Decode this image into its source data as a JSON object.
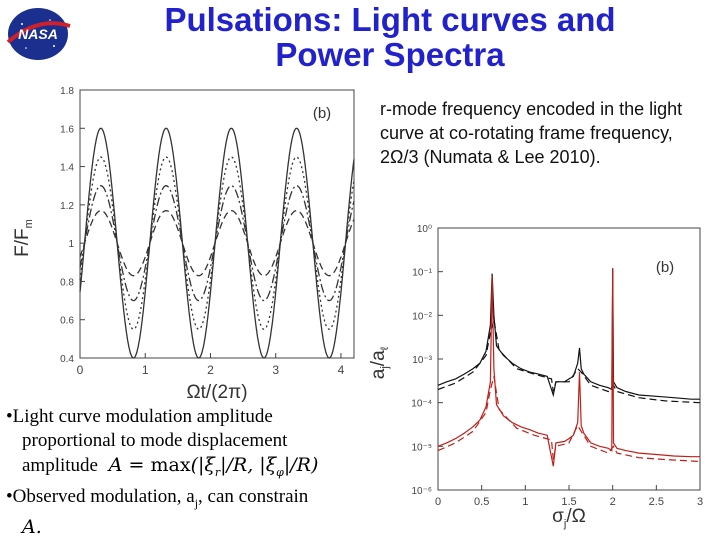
{
  "slide": {
    "title_line1": "Pulsations: Light curves and",
    "title_line2": "Power Spectra",
    "logo_text": "NASA",
    "caption": "r-mode frequency encoded in the light curve at co-rotating frame frequency, 2Ω/3 (Numata & Lee 2010).",
    "bullet1_line1": "•Light curve modulation amplitude",
    "bullet1_line2": "proportional to mode displacement",
    "bullet1_line3": "amplitude",
    "bullet2_line1": "•Observed modulation, a",
    "bullet2_sub": "j",
    "bullet2_rest": ", can constrain",
    "bullet2_line2": "A."
  },
  "chart_data": [
    {
      "type": "line",
      "panel_label": "(b)",
      "xlabel": "Ωt/(2π)",
      "ylabel": "F/F",
      "ylabel_sub": "m",
      "xlim": [
        0,
        4.2
      ],
      "ylim": [
        0.4,
        1.8
      ],
      "xticks": [
        0,
        1,
        2,
        3,
        4
      ],
      "yticks": [
        0.4,
        0.6,
        0.8,
        1,
        1.2,
        1.4,
        1.6,
        1.8
      ],
      "ytick_labels": [
        "0.4",
        "0.6",
        "0.8",
        "1",
        "1.2",
        "1.4",
        "1.6",
        "1.8"
      ],
      "cycles": 4,
      "series": [
        {
          "style": "solid",
          "amplitude": 0.6
        },
        {
          "style": "dotted",
          "amplitude": 0.45
        },
        {
          "style": "dashdot",
          "amplitude": 0.3
        },
        {
          "style": "dashed",
          "amplitude": 0.17
        }
      ],
      "grid": false
    },
    {
      "type": "line",
      "panel_label": "(b)",
      "xlabel": "σ",
      "xlabel_sub": "j",
      "xlabel_rest": "/Ω",
      "ylabel": "a",
      "ylabel_sub": "j",
      "ylabel_rest": "/a",
      "ylabel_sub2": "ℓ",
      "yscale": "log",
      "xlim": [
        0,
        3
      ],
      "ylim": [
        1e-06,
        1
      ],
      "xticks": [
        0,
        0.5,
        1,
        1.5,
        2,
        2.5,
        3
      ],
      "xtick_labels": [
        "0",
        "0.5",
        "1",
        "1.5",
        "2",
        "2.5",
        "3"
      ],
      "yticks": [
        1e-06,
        1e-05,
        0.0001,
        0.001,
        0.01,
        0.1,
        1
      ],
      "ytick_labels": [
        "10⁻⁶",
        "10⁻⁵",
        "10⁻⁴",
        "10⁻³",
        "10⁻²",
        "10⁻¹",
        "10⁰"
      ],
      "series": [
        {
          "color": "#111111",
          "style": "solid",
          "x": [
            0.0,
            0.1,
            0.2,
            0.3,
            0.4,
            0.48,
            0.55,
            0.6,
            0.62,
            0.64,
            0.67,
            0.75,
            0.85,
            0.95,
            1.05,
            1.15,
            1.25,
            1.32,
            1.35,
            1.45,
            1.5,
            1.55,
            1.6,
            1.62,
            1.64,
            1.67,
            1.75,
            1.85,
            1.95,
            1.99,
            2.0,
            2.01,
            2.05,
            2.15,
            2.3,
            2.5,
            2.7,
            2.9,
            3.0
          ],
          "y": [
            0.00025,
            0.0003,
            0.00035,
            0.00045,
            0.0006,
            0.0008,
            0.0015,
            0.006,
            0.09,
            0.01,
            0.002,
            0.0012,
            0.0008,
            0.0006,
            0.0005,
            0.00045,
            0.0004,
            0.00015,
            0.0003,
            0.0003,
            0.00035,
            0.0004,
            0.0008,
            0.0018,
            0.0006,
            0.00045,
            0.0003,
            0.00025,
            0.00022,
            0.0002,
            0.12,
            0.0003,
            0.00022,
            0.00018,
            0.00015,
            0.00014,
            0.00013,
            0.00012,
            0.00012
          ]
        },
        {
          "color": "#111111",
          "style": "dashed",
          "x": [
            0.0,
            0.2,
            0.4,
            0.55,
            0.6,
            0.64,
            0.7,
            0.9,
            1.1,
            1.3,
            1.32,
            1.35,
            1.5,
            1.6,
            1.64,
            1.75,
            1.95,
            2.01,
            2.05,
            2.3,
            2.6,
            3.0
          ],
          "y": [
            0.0002,
            0.00028,
            0.0005,
            0.0012,
            0.004,
            0.008,
            0.0016,
            0.0006,
            0.00045,
            0.00035,
            0.00018,
            0.0003,
            0.0003,
            0.0006,
            0.0005,
            0.00025,
            0.00018,
            0.00025,
            0.00018,
            0.00013,
            0.00011,
            0.0001
          ]
        },
        {
          "color": "#c0201a",
          "style": "solid",
          "x": [
            0.0,
            0.1,
            0.2,
            0.3,
            0.4,
            0.48,
            0.55,
            0.6,
            0.62,
            0.64,
            0.67,
            0.75,
            0.85,
            0.95,
            1.05,
            1.15,
            1.25,
            1.32,
            1.35,
            1.45,
            1.5,
            1.55,
            1.6,
            1.62,
            1.64,
            1.67,
            1.75,
            1.85,
            1.95,
            1.99,
            2.0,
            2.01,
            2.05,
            2.15,
            2.3,
            2.5,
            2.7,
            2.9,
            3.0
          ],
          "y": [
            1e-05,
            1.2e-05,
            1.5e-05,
            2e-05,
            2.8e-05,
            4e-05,
            8e-05,
            0.0003,
            0.08,
            0.0006,
            9e-05,
            5e-05,
            3.5e-05,
            2.8e-05,
            2.4e-05,
            2e-05,
            1.8e-05,
            3.5e-06,
            1.2e-05,
            1.3e-05,
            1.5e-05,
            1.8e-05,
            3.5e-05,
            0.0005,
            3e-05,
            2e-05,
            1.2e-05,
            1e-05,
            9e-06,
            8e-06,
            0.12,
            1.2e-05,
            9e-06,
            8e-06,
            7e-06,
            6.5e-06,
            6e-06,
            5.8e-06,
            5.8e-06
          ]
        },
        {
          "color": "#c0201a",
          "style": "dashed",
          "x": [
            0.0,
            0.2,
            0.4,
            0.55,
            0.6,
            0.64,
            0.7,
            0.9,
            1.1,
            1.3,
            1.32,
            1.35,
            1.5,
            1.6,
            1.64,
            1.75,
            1.95,
            2.01,
            2.05,
            2.3,
            2.6,
            3.0
          ],
          "y": [
            8e-06,
            1.2e-05,
            2.2e-05,
            6e-05,
            0.0002,
            0.0004,
            7e-05,
            2.6e-05,
            1.8e-05,
            1.4e-05,
            5e-06,
            1e-05,
            1.2e-05,
            3e-05,
            2.2e-05,
            1e-05,
            7e-06,
            1e-05,
            7e-06,
            5.5e-06,
            5e-06,
            4.5e-06
          ]
        }
      ],
      "grid": false
    }
  ]
}
